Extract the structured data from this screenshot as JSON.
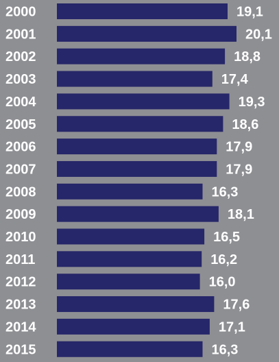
{
  "chart_data": {
    "type": "bar",
    "orientation": "horizontal",
    "categories": [
      "2000",
      "2001",
      "2002",
      "2003",
      "2004",
      "2005",
      "2006",
      "2007",
      "2008",
      "2009",
      "2010",
      "2011",
      "2012",
      "2013",
      "2014",
      "2015"
    ],
    "values": [
      19.1,
      20.1,
      18.8,
      17.4,
      19.3,
      18.6,
      17.9,
      17.9,
      16.3,
      18.1,
      16.5,
      16.2,
      16.0,
      17.6,
      17.1,
      16.3
    ],
    "value_labels": [
      "19,1",
      "20,1",
      "18,8",
      "17,4",
      "19,3",
      "18,6",
      "17,9",
      "17,9",
      "16,3",
      "18,1",
      "16,5",
      "16,2",
      "16,0",
      "17,6",
      "17,1",
      "16,3"
    ],
    "title": "",
    "xlabel": "",
    "ylabel": "",
    "grid": false,
    "colors": {
      "bar": "#26266a",
      "background": "#8e8f93",
      "text": "#ffffff"
    }
  }
}
